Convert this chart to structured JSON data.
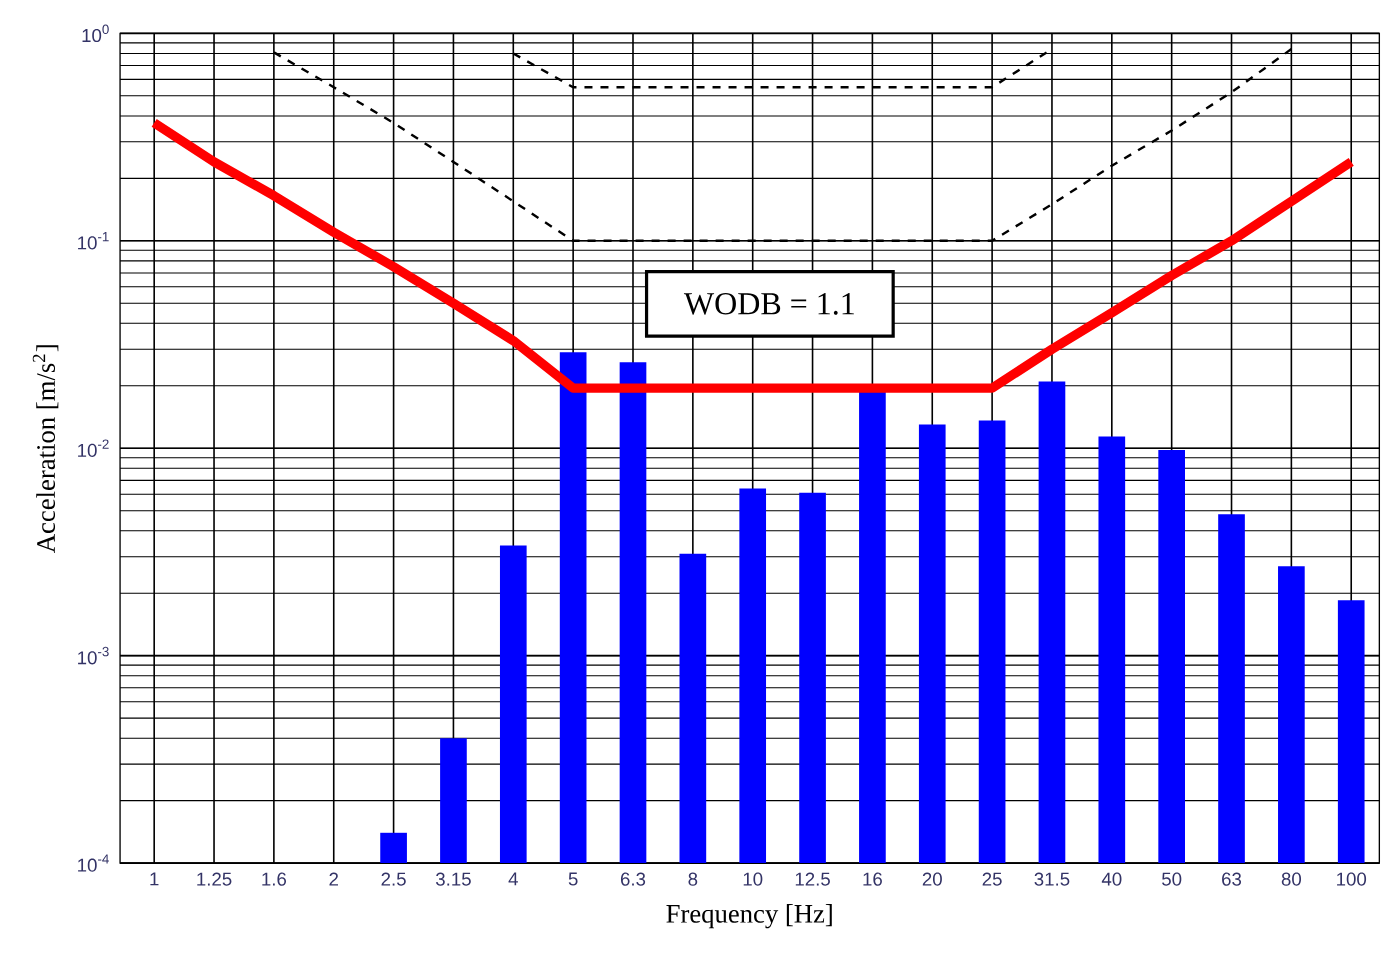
{
  "chart_data": {
    "type": "bar",
    "xlabel": "Frequency [Hz]",
    "ylabel": "Acceleration [m/s$^{2}$]",
    "categories": [
      "1",
      "1.25",
      "1.6",
      "2",
      "2.5",
      "3.15",
      "4",
      "5",
      "6.3",
      "8",
      "10",
      "12.5",
      "16",
      "20",
      "25",
      "31.5",
      "40",
      "50",
      "63",
      "80",
      "100"
    ],
    "series": [
      {
        "color": "#0000ff",
        "values": [
          0.0001,
          0.0001,
          0.0001,
          0.0001,
          0.00014,
          0.0004,
          0.0034,
          0.029,
          0.026,
          0.0031,
          0.0064,
          0.0061,
          0.019,
          0.013,
          0.0136,
          0.021,
          0.0114,
          0.0098,
          0.0048,
          0.0027,
          0.00185
        ]
      },
      {
        "type": "line",
        "color": "#ff0000",
        "line_style": "solid",
        "values": [
          0.37,
          0.24,
          0.165,
          0.11,
          0.075,
          0.05,
          0.033,
          0.0195,
          0.0195,
          0.0195,
          0.0195,
          0.0195,
          0.0195,
          0.0195,
          0.0195,
          0.03,
          0.045,
          0.068,
          0.1,
          0.155,
          0.24
        ]
      },
      {
        "type": "line",
        "color": "#000000",
        "line_style": "dashed",
        "values": [
          null,
          null,
          0.81,
          0.55,
          0.37,
          0.24,
          0.155,
          0.1,
          0.1,
          0.1,
          0.1,
          0.1,
          0.1,
          0.1,
          0.1,
          0.15,
          0.23,
          0.34,
          0.52,
          0.84,
          null
        ]
      },
      {
        "type": "line",
        "color": "#000000",
        "line_style": "dashed",
        "values": [
          null,
          null,
          null,
          null,
          null,
          null,
          0.8,
          0.55,
          0.55,
          0.55,
          0.55,
          0.55,
          0.55,
          0.55,
          0.55,
          0.84,
          null,
          null,
          null,
          null,
          null
        ]
      }
    ],
    "log": true,
    "ylim": [
      0.0001,
      1
    ],
    "yticks": [
      {
        "value": 0.0001,
        "label": "10$^{-4}$"
      },
      {
        "value": 0.001,
        "label": "10$^{-3}$"
      },
      {
        "value": 0.01,
        "label": "10$^{-2}$"
      },
      {
        "value": 0.1,
        "label": "10$^{-1}$"
      },
      {
        "value": 1,
        "label": "10$^{0}$"
      }
    ],
    "grid": true,
    "annotations": [
      "WODB = 1.1"
    ]
  }
}
